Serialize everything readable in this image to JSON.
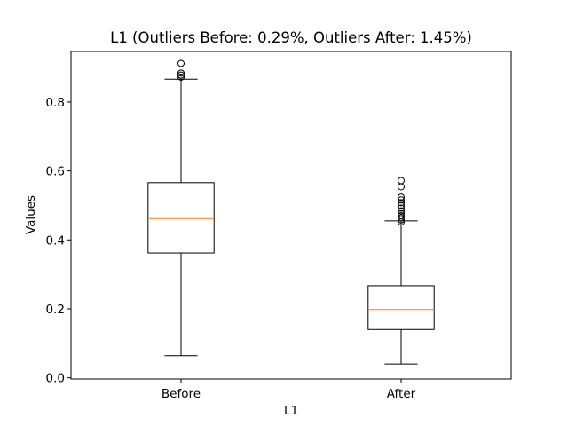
{
  "chart_data": {
    "type": "box",
    "title": "L1 (Outliers Before: 0.29%, Outliers After: 1.45%)",
    "xlabel": "L1",
    "ylabel": "Values",
    "ylim": [
      -0.0035,
      0.9466
    ],
    "yticks": [
      0.0,
      0.2,
      0.4,
      0.6,
      0.8
    ],
    "ytick_labels": [
      "0.0",
      "0.2",
      "0.4",
      "0.6",
      "0.8"
    ],
    "categories": [
      "Before",
      "After"
    ],
    "median_color": "#ff7f0e",
    "box_color": "#000000",
    "boxes": [
      {
        "name": "Before",
        "whisker_low": 0.064,
        "q1": 0.362,
        "median": 0.462,
        "q3": 0.566,
        "whisker_high": 0.866,
        "outliers": [
          0.872,
          0.878,
          0.884,
          0.912
        ]
      },
      {
        "name": "After",
        "whisker_low": 0.04,
        "q1": 0.14,
        "median": 0.198,
        "q3": 0.267,
        "whisker_high": 0.455,
        "outliers": [
          0.452,
          0.458,
          0.464,
          0.47,
          0.476,
          0.484,
          0.492,
          0.5,
          0.508,
          0.516,
          0.524,
          0.554,
          0.572
        ]
      }
    ]
  }
}
